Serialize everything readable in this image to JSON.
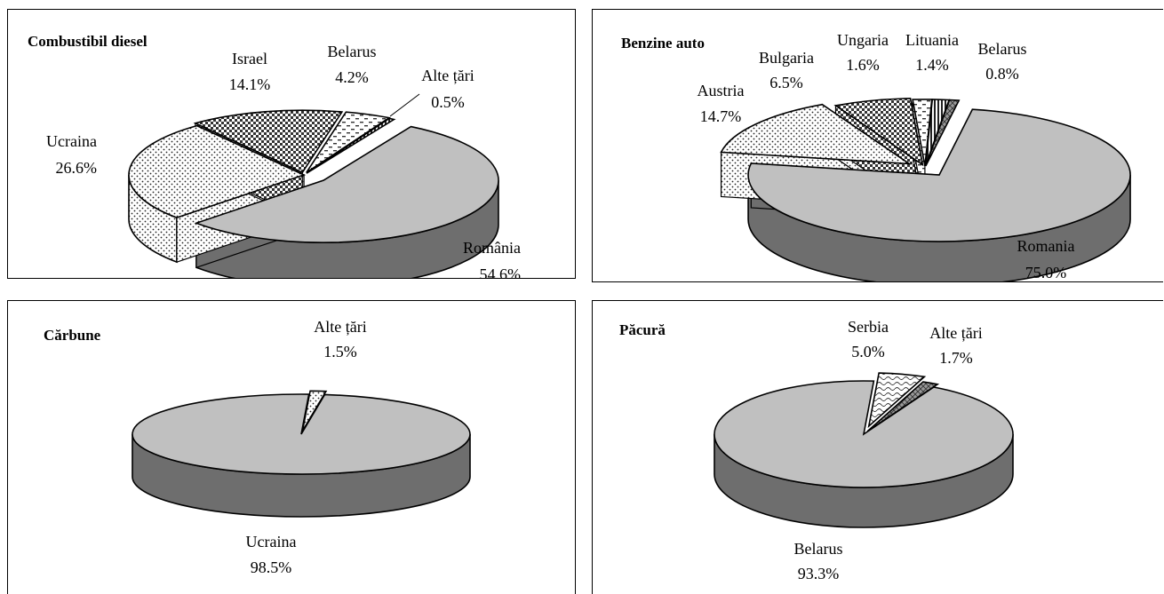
{
  "colors": {
    "top": "#c0c0c0",
    "side": "#6e6e6e",
    "outline": "#000000",
    "pattern_bg": "#ffffff",
    "pattern_fg": "#222222"
  },
  "chart_data": [
    {
      "type": "pie",
      "title": "Combustibil diesel",
      "slices": [
        {
          "name": "România",
          "value": 54.6,
          "label": "54.6%",
          "fill": "solid"
        },
        {
          "name": "Ucraina",
          "value": 26.6,
          "label": "26.6%",
          "fill": "dots"
        },
        {
          "name": "Israel",
          "value": 14.1,
          "label": "14.1%",
          "fill": "checker"
        },
        {
          "name": "Belarus",
          "value": 4.2,
          "label": "4.2%",
          "fill": "dash"
        },
        {
          "name": "Alte țări",
          "value": 0.5,
          "label": "0.5%",
          "fill": "vlines"
        }
      ]
    },
    {
      "type": "pie",
      "title": "Benzine auto",
      "slices": [
        {
          "name": "Romania",
          "value": 75.0,
          "label": "75.0%",
          "fill": "solid"
        },
        {
          "name": "Austria",
          "value": 14.7,
          "label": "14.7%",
          "fill": "dots"
        },
        {
          "name": "Bulgaria",
          "value": 6.5,
          "label": "6.5%",
          "fill": "checker"
        },
        {
          "name": "Ungaria",
          "value": 1.6,
          "label": "1.6%",
          "fill": "dash"
        },
        {
          "name": "Lituania",
          "value": 1.4,
          "label": "1.4%",
          "fill": "vlines"
        },
        {
          "name": "Belarus",
          "value": 0.8,
          "label": "0.8%",
          "fill": "cross"
        }
      ]
    },
    {
      "type": "pie",
      "title": "Cărbune",
      "slices": [
        {
          "name": "Ucraina",
          "value": 98.5,
          "label": "98.5%",
          "fill": "solid"
        },
        {
          "name": "Alte țări",
          "value": 1.5,
          "label": "1.5%",
          "fill": "dots"
        }
      ]
    },
    {
      "type": "pie",
      "title": "Păcură",
      "slices": [
        {
          "name": "Belarus",
          "value": 93.3,
          "label": "93.3%",
          "fill": "solid"
        },
        {
          "name": "Serbia",
          "value": 5.0,
          "label": "5.0%",
          "fill": "wave"
        },
        {
          "name": "Alte țări",
          "value": 1.7,
          "label": "1.7%",
          "fill": "cross"
        }
      ]
    }
  ]
}
